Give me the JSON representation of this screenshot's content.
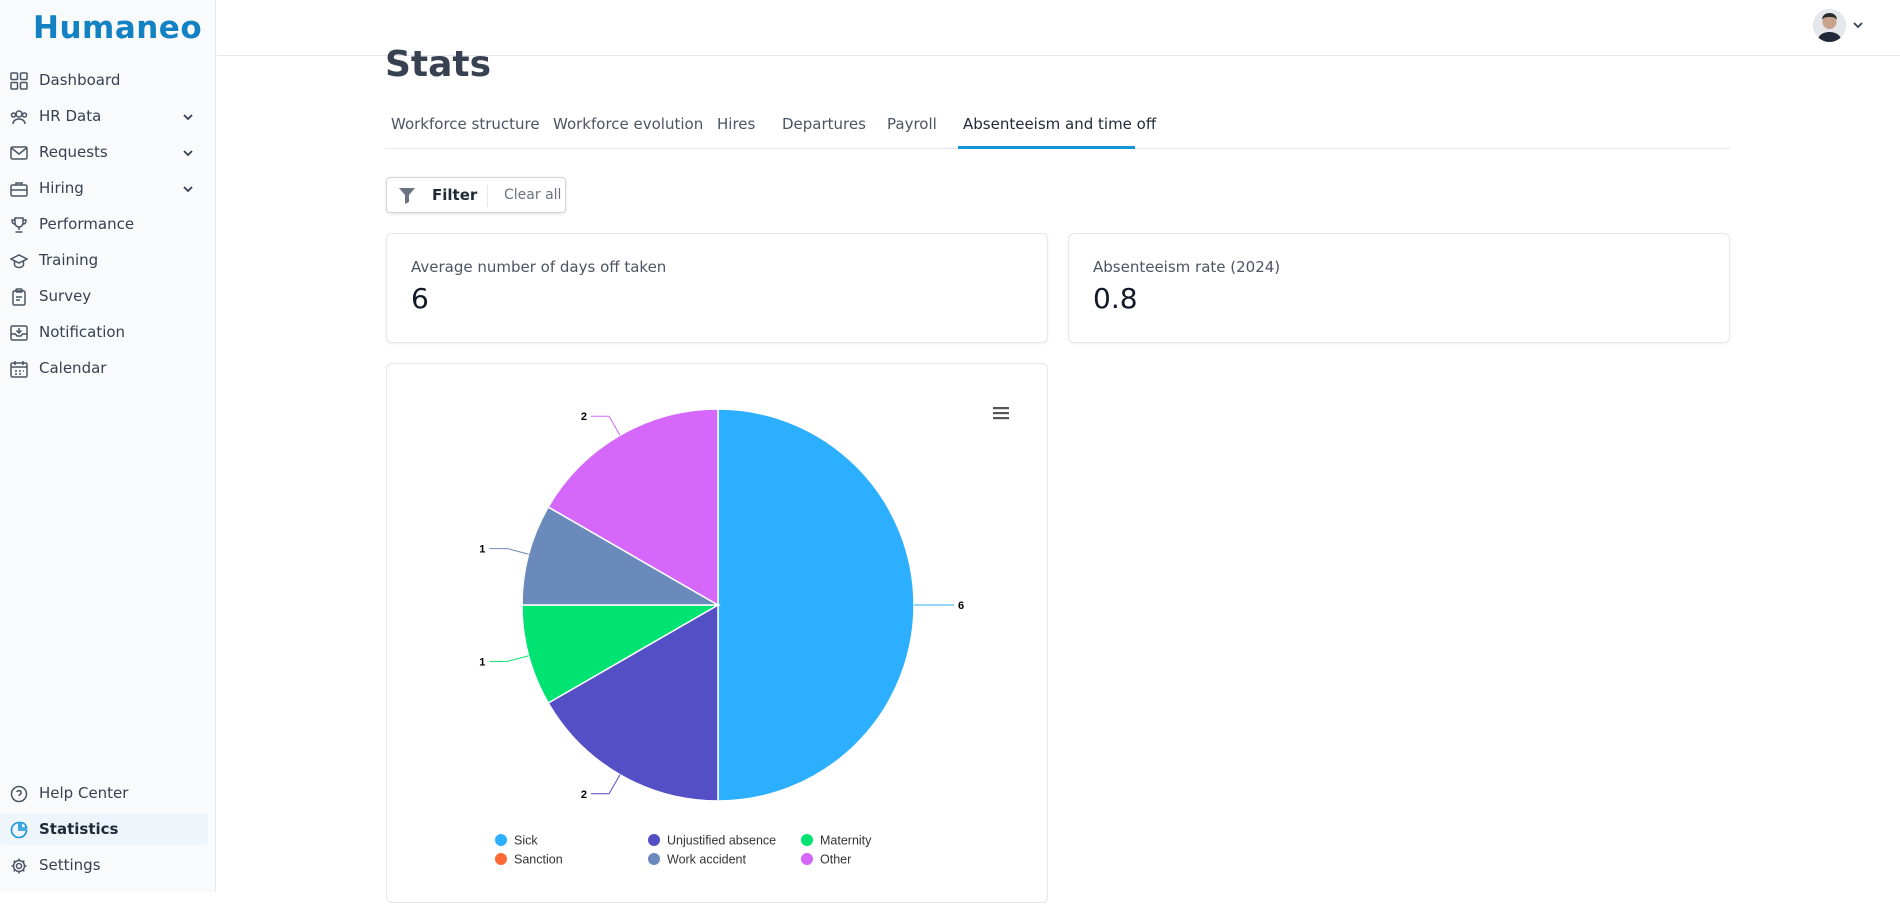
{
  "app": {
    "name": "Humaneo"
  },
  "sidebar": {
    "items": [
      {
        "label": "Dashboard",
        "icon": "grid-icon",
        "has_chevron": false
      },
      {
        "label": "HR Data",
        "icon": "users-icon",
        "has_chevron": true
      },
      {
        "label": "Requests",
        "icon": "envelope-icon",
        "has_chevron": true
      },
      {
        "label": "Hiring",
        "icon": "briefcase-icon",
        "has_chevron": true
      },
      {
        "label": "Performance",
        "icon": "trophy-icon",
        "has_chevron": false
      },
      {
        "label": "Training",
        "icon": "graduation-cap-icon",
        "has_chevron": false
      },
      {
        "label": "Survey",
        "icon": "clipboard-icon",
        "has_chevron": false
      },
      {
        "label": "Notification",
        "icon": "inbox-icon",
        "has_chevron": false
      },
      {
        "label": "Calendar",
        "icon": "calendar-icon",
        "has_chevron": false
      }
    ],
    "bottom_items": [
      {
        "label": "Help Center",
        "icon": "help-circle-icon"
      },
      {
        "label": "Statistics",
        "icon": "pie-chart-icon",
        "active": true
      },
      {
        "label": "Settings",
        "icon": "gear-icon"
      }
    ]
  },
  "page": {
    "title": "Stats"
  },
  "tabs": [
    {
      "label": "Workforce structure"
    },
    {
      "label": "Workforce evolution"
    },
    {
      "label": "Hires"
    },
    {
      "label": "Departures"
    },
    {
      "label": "Payroll"
    },
    {
      "label": "Absenteeism and time off",
      "active": true
    }
  ],
  "filter": {
    "label": "Filter",
    "clear_label": "Clear all"
  },
  "kpis": [
    {
      "label": "Average number of days off taken",
      "value": "6"
    },
    {
      "label": "Absenteeism rate (2024)",
      "value": "0.8"
    }
  ],
  "chart_data": {
    "type": "pie",
    "slices": [
      {
        "name": "Sick",
        "value": 6,
        "color": "#2caffe"
      },
      {
        "name": "Unjustified absence",
        "value": 2,
        "color": "#544fc5"
      },
      {
        "name": "Maternity",
        "value": 1,
        "color": "#00e272"
      },
      {
        "name": "Sanction",
        "value": 0,
        "color": "#fe6a35"
      },
      {
        "name": "Work accident",
        "value": 1,
        "color": "#6b8abc"
      },
      {
        "name": "Other",
        "value": 2,
        "color": "#d568fb"
      }
    ],
    "data_labels": true,
    "legend_placement": "bottom"
  },
  "colors": {
    "accent": "#1596d6",
    "brand": "#1282c3",
    "active_bg": "#eef6fc"
  }
}
